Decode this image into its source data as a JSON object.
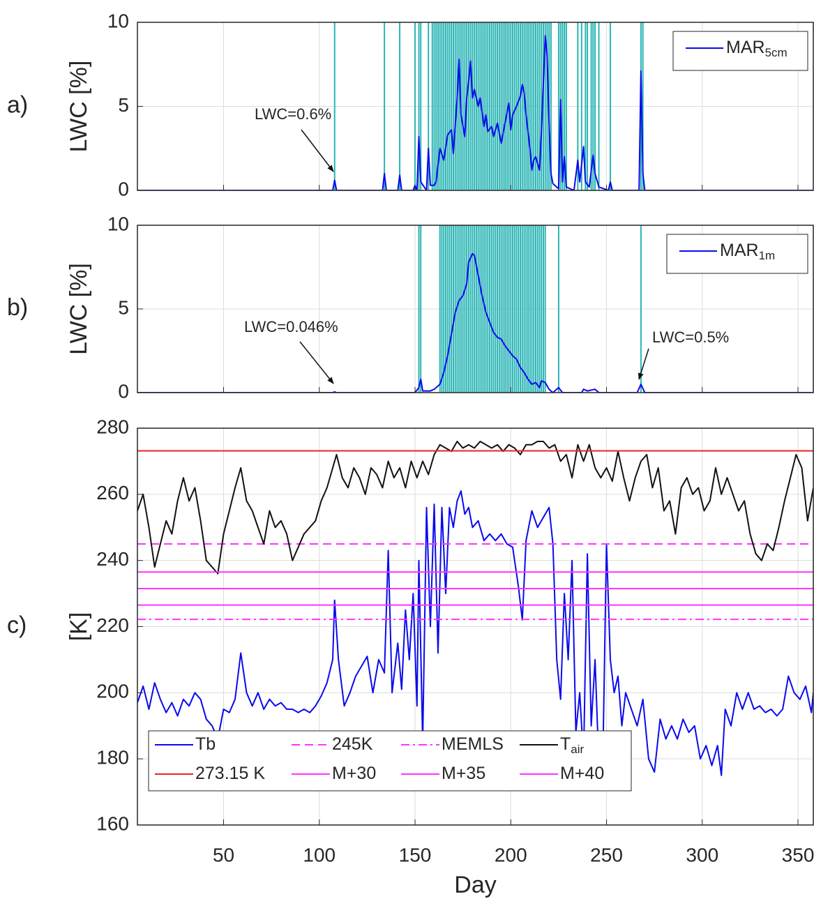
{
  "chart_data": [
    {
      "type": "line",
      "panel_label": "a)",
      "ylabel": "LWC [%]",
      "xlim": [
        5,
        358
      ],
      "ylim": [
        0,
        10
      ],
      "yticks": [
        0,
        5,
        10
      ],
      "xticks": [
        50,
        100,
        150,
        200,
        250,
        300,
        350
      ],
      "grid": true,
      "legend": "upper right",
      "vlines": {
        "color": "#2bb5b5",
        "x": [
          108,
          134,
          142,
          150,
          152,
          153,
          157,
          159,
          160,
          161,
          162,
          163,
          164,
          165,
          166,
          167,
          168,
          169,
          170,
          171,
          172,
          173,
          174,
          175,
          176,
          177,
          178,
          179,
          180,
          181,
          182,
          183,
          184,
          185,
          186,
          187,
          188,
          189,
          190,
          191,
          192,
          193,
          194,
          195,
          196,
          197,
          198,
          199,
          200,
          201,
          202,
          203,
          204,
          205,
          206,
          207,
          208,
          209,
          210,
          211,
          212,
          213,
          214,
          215,
          216,
          217,
          218,
          219,
          220,
          221,
          225,
          226,
          227,
          228,
          229,
          235,
          237,
          239,
          240,
          242,
          243,
          244,
          246,
          252,
          268,
          269
        ]
      },
      "annotations": [
        {
          "text": "LWC=0.6%"
        }
      ],
      "series": [
        {
          "name": "MAR",
          "subscript": "5cm",
          "color": "#0a0aee",
          "x": [
            5,
            107,
            108,
            109,
            133,
            134,
            135,
            141,
            142,
            143,
            149,
            150,
            151,
            152,
            153,
            156,
            157,
            158,
            160,
            161,
            163,
            165,
            167,
            169,
            170,
            172,
            173,
            174,
            176,
            177,
            178,
            179,
            180,
            181,
            183,
            184,
            186,
            187,
            188,
            190,
            191,
            193,
            195,
            197,
            199,
            200,
            201,
            203,
            205,
            206,
            207,
            208,
            210,
            211,
            212,
            213,
            215,
            216,
            218,
            219,
            220,
            221,
            222,
            224,
            225,
            226,
            227,
            228,
            229,
            233,
            235,
            236,
            238,
            239,
            241,
            243,
            244,
            246,
            251,
            252,
            253,
            267,
            268,
            269,
            270,
            358
          ],
          "values": [
            0,
            0,
            0.6,
            0,
            0,
            1.0,
            0,
            0,
            0.9,
            0,
            0,
            0.3,
            0,
            3.2,
            0.5,
            0,
            2.5,
            0.3,
            0.3,
            0.5,
            2.5,
            1.8,
            3.3,
            3.6,
            2.2,
            5.5,
            7.8,
            4.5,
            3.2,
            5.5,
            6.5,
            7.7,
            5.5,
            6.0,
            5.0,
            5.5,
            3.8,
            4.5,
            3.5,
            3.8,
            3.2,
            4.0,
            2.8,
            4.0,
            5.2,
            3.6,
            4.5,
            5.0,
            5.6,
            6.3,
            5.8,
            4.5,
            2.5,
            1.2,
            1.8,
            2.0,
            1.2,
            3.5,
            9.2,
            8.0,
            4.0,
            1.0,
            0.4,
            0.2,
            0.1,
            5.4,
            0.5,
            2.0,
            0.2,
            0,
            1.8,
            0.5,
            2.6,
            0.5,
            0.2,
            2.1,
            1.0,
            0.2,
            0,
            0.5,
            0,
            0,
            7.1,
            1.0,
            0,
            0
          ]
        }
      ]
    },
    {
      "type": "line",
      "panel_label": "b)",
      "ylabel": "LWC [%]",
      "xlim": [
        5,
        358
      ],
      "ylim": [
        0,
        10
      ],
      "yticks": [
        0,
        5,
        10
      ],
      "xticks": [
        50,
        100,
        150,
        200,
        250,
        300,
        350
      ],
      "grid": true,
      "legend": "upper right",
      "vlines": {
        "color": "#2bb5b5",
        "x": [
          152,
          153,
          163,
          164,
          165,
          166,
          167,
          168,
          169,
          170,
          171,
          172,
          173,
          174,
          175,
          176,
          177,
          178,
          179,
          180,
          181,
          182,
          183,
          184,
          185,
          186,
          187,
          188,
          189,
          190,
          191,
          192,
          193,
          194,
          195,
          196,
          197,
          198,
          199,
          200,
          201,
          202,
          203,
          204,
          205,
          206,
          207,
          208,
          209,
          210,
          211,
          212,
          213,
          214,
          215,
          216,
          217,
          218,
          225,
          268
        ]
      },
      "annotations": [
        {
          "text": "LWC=0.046%"
        },
        {
          "text": "LWC=0.5%"
        }
      ],
      "series": [
        {
          "name": "MAR",
          "subscript": "1m",
          "color": "#0a0aee",
          "x": [
            5,
            107,
            108,
            109,
            150,
            152,
            153,
            154,
            158,
            160,
            163,
            165,
            167,
            169,
            171,
            173,
            175,
            177,
            178,
            180,
            181,
            183,
            185,
            187,
            189,
            191,
            193,
            195,
            197,
            199,
            201,
            203,
            205,
            207,
            209,
            211,
            213,
            215,
            216,
            218,
            220,
            222,
            225,
            227,
            237,
            238,
            240,
            244,
            246,
            266,
            268,
            270,
            358
          ],
          "values": [
            0,
            0,
            0.046,
            0,
            0,
            0.3,
            0.8,
            0.1,
            0.1,
            0.2,
            0.5,
            1.2,
            2.2,
            3.5,
            4.8,
            5.5,
            5.8,
            6.5,
            7.8,
            8.3,
            8.2,
            7.0,
            5.8,
            4.8,
            4.2,
            3.6,
            3.3,
            3.2,
            2.8,
            2.5,
            2.2,
            2.0,
            1.5,
            1.2,
            0.8,
            0.5,
            0.6,
            0.3,
            0.7,
            0.6,
            0.2,
            0,
            0.3,
            0,
            0,
            0.2,
            0.1,
            0.2,
            0,
            0,
            0.5,
            0,
            0
          ]
        }
      ]
    },
    {
      "type": "line",
      "panel_label": "c)",
      "ylabel": "[K]",
      "xlabel": "Day",
      "xlim": [
        5,
        358
      ],
      "ylim": [
        160,
        280
      ],
      "yticks": [
        160,
        180,
        200,
        220,
        240,
        260,
        280
      ],
      "xticks": [
        50,
        100,
        150,
        200,
        250,
        300,
        350
      ],
      "grid": true,
      "legend": "lower left",
      "series": [
        {
          "name": "Tb",
          "color": "#0a0aee",
          "x": [
            5,
            8,
            11,
            14,
            17,
            20,
            23,
            26,
            29,
            32,
            35,
            38,
            41,
            44,
            47,
            50,
            53,
            56,
            59,
            62,
            65,
            68,
            71,
            74,
            77,
            80,
            83,
            86,
            89,
            92,
            95,
            98,
            101,
            104,
            107,
            108,
            110,
            113,
            116,
            119,
            122,
            125,
            128,
            131,
            134,
            136,
            138,
            141,
            143,
            145,
            147,
            149,
            151,
            152,
            154,
            156,
            158,
            160,
            162,
            164,
            166,
            168,
            170,
            172,
            174,
            176,
            178,
            180,
            183,
            186,
            189,
            192,
            195,
            198,
            201,
            204,
            206,
            208,
            211,
            214,
            217,
            220,
            222,
            224,
            226,
            228,
            230,
            232,
            234,
            236,
            238,
            240,
            242,
            244,
            246,
            248,
            250,
            252,
            254,
            256,
            258,
            260,
            263,
            266,
            269,
            272,
            275,
            278,
            281,
            284,
            287,
            290,
            293,
            296,
            299,
            302,
            305,
            308,
            310,
            312,
            315,
            318,
            321,
            324,
            327,
            330,
            333,
            336,
            339,
            342,
            345,
            348,
            351,
            354,
            357,
            358
          ],
          "values": [
            197,
            202,
            195,
            203,
            198,
            194,
            197,
            193,
            198,
            196,
            200,
            198,
            192,
            190,
            186,
            195,
            194,
            198,
            212,
            200,
            196,
            200,
            195,
            198,
            196,
            197,
            195,
            195,
            194,
            195,
            194,
            196,
            199,
            203,
            210,
            228,
            210,
            196,
            200,
            205,
            208,
            211,
            200,
            210,
            206,
            243,
            200,
            215,
            201,
            225,
            210,
            230,
            196,
            240,
            185,
            256,
            220,
            257,
            212,
            256,
            230,
            256,
            250,
            258,
            261,
            254,
            256,
            250,
            252,
            246,
            248,
            246,
            248,
            245,
            244,
            232,
            222,
            246,
            255,
            250,
            253,
            256,
            245,
            210,
            198,
            230,
            210,
            240,
            188,
            200,
            180,
            242,
            190,
            210,
            178,
            176,
            245,
            210,
            200,
            205,
            190,
            200,
            195,
            190,
            198,
            180,
            176,
            192,
            186,
            190,
            186,
            192,
            188,
            190,
            180,
            184,
            178,
            184,
            175,
            195,
            190,
            200,
            195,
            200,
            195,
            196,
            194,
            195,
            193,
            195,
            205,
            200,
            198,
            202,
            194,
            200
          ]
        },
        {
          "name": "245K",
          "color": "#ff33ff",
          "style": "dashed",
          "value": 245
        },
        {
          "name": "MEMLS",
          "color": "#ff33ff",
          "style": "dash-dot",
          "value": 222.2
        },
        {
          "name": "T",
          "subscript": "air",
          "color": "#111111",
          "x": [
            5,
            8,
            11,
            14,
            17,
            20,
            23,
            26,
            29,
            32,
            35,
            38,
            41,
            44,
            47,
            50,
            53,
            56,
            59,
            62,
            65,
            68,
            71,
            74,
            77,
            80,
            83,
            86,
            89,
            92,
            95,
            98,
            101,
            104,
            107,
            109,
            112,
            115,
            118,
            121,
            124,
            127,
            130,
            133,
            136,
            139,
            142,
            145,
            148,
            151,
            154,
            157,
            160,
            163,
            166,
            169,
            172,
            175,
            178,
            181,
            184,
            187,
            190,
            193,
            196,
            199,
            202,
            205,
            208,
            211,
            214,
            217,
            220,
            223,
            226,
            229,
            232,
            235,
            238,
            241,
            244,
            247,
            250,
            253,
            256,
            259,
            262,
            265,
            268,
            271,
            274,
            277,
            280,
            283,
            286,
            289,
            292,
            295,
            298,
            301,
            304,
            307,
            310,
            313,
            316,
            319,
            322,
            325,
            328,
            331,
            334,
            337,
            340,
            343,
            346,
            349,
            352,
            355,
            358
          ],
          "values": [
            255,
            260,
            250,
            238,
            245,
            252,
            248,
            258,
            265,
            258,
            262,
            252,
            240,
            238,
            236,
            248,
            255,
            262,
            268,
            258,
            255,
            250,
            245,
            255,
            250,
            252,
            248,
            240,
            244,
            248,
            250,
            252,
            258,
            262,
            268,
            272,
            265,
            262,
            268,
            265,
            260,
            268,
            266,
            262,
            270,
            265,
            268,
            262,
            270,
            265,
            270,
            266,
            272,
            275,
            274,
            273,
            276,
            274,
            275,
            274,
            276,
            275,
            274,
            275,
            273,
            275,
            274,
            272,
            275,
            275,
            276,
            276,
            274,
            275,
            270,
            272,
            265,
            275,
            270,
            275,
            268,
            265,
            268,
            264,
            273,
            265,
            258,
            265,
            270,
            272,
            262,
            268,
            255,
            258,
            248,
            262,
            265,
            260,
            262,
            255,
            258,
            268,
            260,
            265,
            260,
            255,
            258,
            248,
            242,
            240,
            245,
            243,
            250,
            258,
            265,
            272,
            268,
            252,
            262
          ]
        },
        {
          "name": "273.15 K",
          "color": "#ee2222",
          "style": "solid",
          "value": 273.15
        },
        {
          "name": "M+30",
          "color": "#ff33ff",
          "style": "solid",
          "value": 226.5
        },
        {
          "name": "M+35",
          "color": "#ff33ff",
          "style": "solid",
          "value": 231.5
        },
        {
          "name": "M+40",
          "color": "#ff33ff",
          "style": "solid",
          "value": 236.5
        }
      ]
    }
  ]
}
